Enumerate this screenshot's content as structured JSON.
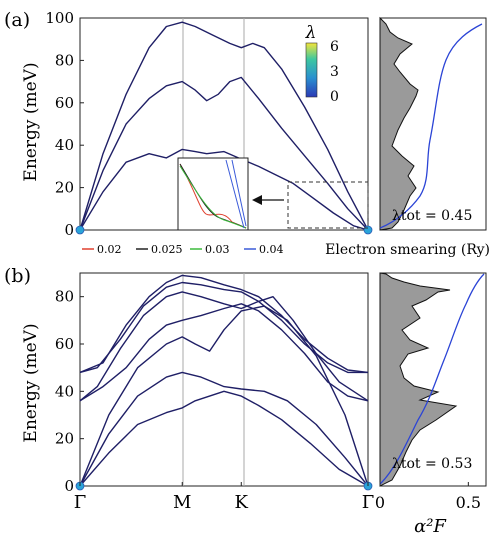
{
  "chart_data": [
    {
      "panel": "(a)",
      "type": "line",
      "ylabel": "Energy (meV)",
      "ylim": [
        0,
        100
      ],
      "yticks": [
        0,
        20,
        40,
        60,
        80,
        100
      ],
      "colorbar": {
        "label": "λ",
        "ticks": [
          "6",
          "3",
          "0"
        ]
      },
      "x_points": [
        "Γ",
        "M",
        "K",
        "Γ"
      ],
      "series": [
        {
          "branch": 1,
          "points": [
            [
              0,
              0
            ],
            [
              0.08,
              18
            ],
            [
              0.16,
              32
            ],
            [
              0.24,
              36
            ],
            [
              0.3,
              34
            ],
            [
              0.355,
              38
            ],
            [
              0.4,
              37
            ],
            [
              0.44,
              36
            ],
            [
              0.5,
              37
            ],
            [
              0.55,
              34
            ],
            [
              0.62,
              30
            ],
            [
              0.68,
              26
            ],
            [
              0.74,
              22
            ],
            [
              0.8,
              16
            ],
            [
              0.88,
              8
            ],
            [
              0.95,
              2
            ],
            [
              1,
              0
            ]
          ]
        },
        {
          "branch": 2,
          "points": [
            [
              0,
              0
            ],
            [
              0.08,
              28
            ],
            [
              0.16,
              50
            ],
            [
              0.24,
              62
            ],
            [
              0.3,
              68
            ],
            [
              0.355,
              70
            ],
            [
              0.4,
              66
            ],
            [
              0.44,
              61
            ],
            [
              0.48,
              64
            ],
            [
              0.52,
              70
            ],
            [
              0.56,
              72
            ],
            [
              0.62,
              62
            ],
            [
              0.7,
              48
            ],
            [
              0.78,
              35
            ],
            [
              0.86,
              22
            ],
            [
              0.93,
              10
            ],
            [
              1,
              0
            ]
          ]
        },
        {
          "branch": 3,
          "points": [
            [
              0,
              0
            ],
            [
              0.08,
              36
            ],
            [
              0.16,
              64
            ],
            [
              0.24,
              86
            ],
            [
              0.3,
              96
            ],
            [
              0.355,
              98
            ],
            [
              0.4,
              96
            ],
            [
              0.46,
              92
            ],
            [
              0.52,
              88
            ],
            [
              0.56,
              86
            ],
            [
              0.6,
              88
            ],
            [
              0.64,
              86
            ],
            [
              0.7,
              76
            ],
            [
              0.78,
              58
            ],
            [
              0.86,
              38
            ],
            [
              0.93,
              18
            ],
            [
              1,
              0
            ]
          ]
        }
      ],
      "inset_legend": [
        {
          "label": "0.02",
          "color": "#e0412f"
        },
        {
          "label": "0.025",
          "color": "#222222"
        },
        {
          "label": "0.03",
          "color": "#3cba3c"
        },
        {
          "label": "0.04",
          "color": "#3b5bd9"
        }
      ],
      "inset_caption": "Electron smearing (Ry)"
    },
    {
      "panel": "(b)",
      "type": "line",
      "ylabel": "Energy (meV)",
      "ylim": [
        0,
        90
      ],
      "yticks": [
        0,
        20,
        40,
        60,
        80
      ],
      "x_points": [
        "Γ",
        "M",
        "K",
        "Γ"
      ],
      "series": [
        {
          "branch": 1,
          "points": [
            [
              0,
              0
            ],
            [
              0.1,
              14
            ],
            [
              0.2,
              26
            ],
            [
              0.3,
              31
            ],
            [
              0.355,
              33
            ],
            [
              0.4,
              36
            ],
            [
              0.5,
              40
            ],
            [
              0.56,
              38
            ],
            [
              0.62,
              34
            ],
            [
              0.7,
              28
            ],
            [
              0.8,
              18
            ],
            [
              0.9,
              7
            ],
            [
              1,
              0
            ]
          ]
        },
        {
          "branch": 2,
          "points": [
            [
              0,
              0
            ],
            [
              0.1,
              22
            ],
            [
              0.2,
              38
            ],
            [
              0.3,
              46
            ],
            [
              0.355,
              48
            ],
            [
              0.42,
              46
            ],
            [
              0.5,
              42
            ],
            [
              0.56,
              41
            ],
            [
              0.64,
              40
            ],
            [
              0.72,
              36
            ],
            [
              0.82,
              26
            ],
            [
              0.92,
              12
            ],
            [
              1,
              0
            ]
          ]
        },
        {
          "branch": 3,
          "points": [
            [
              0,
              0
            ],
            [
              0.1,
              30
            ],
            [
              0.2,
              50
            ],
            [
              0.3,
              60
            ],
            [
              0.355,
              63
            ],
            [
              0.4,
              60
            ],
            [
              0.45,
              57
            ],
            [
              0.5,
              66
            ],
            [
              0.56,
              74
            ],
            [
              0.64,
              76
            ],
            [
              0.72,
              70
            ],
            [
              0.82,
              55
            ],
            [
              0.92,
              30
            ],
            [
              1,
              0
            ]
          ]
        },
        {
          "branch": 4,
          "points": [
            [
              0,
              36
            ],
            [
              0.08,
              42
            ],
            [
              0.16,
              50
            ],
            [
              0.24,
              62
            ],
            [
              0.3,
              68
            ],
            [
              0.355,
              70
            ],
            [
              0.42,
              72
            ],
            [
              0.5,
              75
            ],
            [
              0.56,
              77
            ],
            [
              0.62,
              74
            ],
            [
              0.7,
              66
            ],
            [
              0.78,
              56
            ],
            [
              0.86,
              44
            ],
            [
              0.93,
              38
            ],
            [
              1,
              36
            ]
          ]
        },
        {
          "branch": 5,
          "points": [
            [
              0,
              36
            ],
            [
              0.06,
              42
            ],
            [
              0.14,
              58
            ],
            [
              0.22,
              72
            ],
            [
              0.3,
              80
            ],
            [
              0.355,
              82
            ],
            [
              0.42,
              80
            ],
            [
              0.5,
              77
            ],
            [
              0.56,
              75
            ],
            [
              0.62,
              78
            ],
            [
              0.67,
              80
            ],
            [
              0.74,
              70
            ],
            [
              0.82,
              56
            ],
            [
              0.9,
              44
            ],
            [
              1,
              36
            ]
          ]
        },
        {
          "branch": 6,
          "points": [
            [
              0,
              48
            ],
            [
              0.06,
              50
            ],
            [
              0.14,
              62
            ],
            [
              0.22,
              76
            ],
            [
              0.3,
              84
            ],
            [
              0.355,
              86
            ],
            [
              0.42,
              85
            ],
            [
              0.5,
              83
            ],
            [
              0.56,
              82
            ],
            [
              0.62,
              78
            ],
            [
              0.7,
              70
            ],
            [
              0.78,
              60
            ],
            [
              0.86,
              52
            ],
            [
              0.93,
              48
            ],
            [
              1,
              48
            ]
          ]
        },
        {
          "branch": 7,
          "points": [
            [
              0,
              48
            ],
            [
              0.08,
              52
            ],
            [
              0.16,
              68
            ],
            [
              0.24,
              80
            ],
            [
              0.3,
              86
            ],
            [
              0.355,
              89
            ],
            [
              0.42,
              88
            ],
            [
              0.5,
              85
            ],
            [
              0.56,
              83
            ],
            [
              0.62,
              80
            ],
            [
              0.7,
              72
            ],
            [
              0.78,
              62
            ],
            [
              0.86,
              54
            ],
            [
              0.93,
              49
            ],
            [
              1,
              48
            ]
          ]
        }
      ]
    },
    {
      "panel": "(a) right",
      "type": "area",
      "annotation": "λtot = 0.45"
    },
    {
      "panel": "(b) right",
      "type": "area",
      "annotation": "λtot = 0.53",
      "xticks": [
        "0",
        "0.5"
      ],
      "xlim": [
        0,
        0.6
      ],
      "xlabel": "α²F"
    }
  ]
}
